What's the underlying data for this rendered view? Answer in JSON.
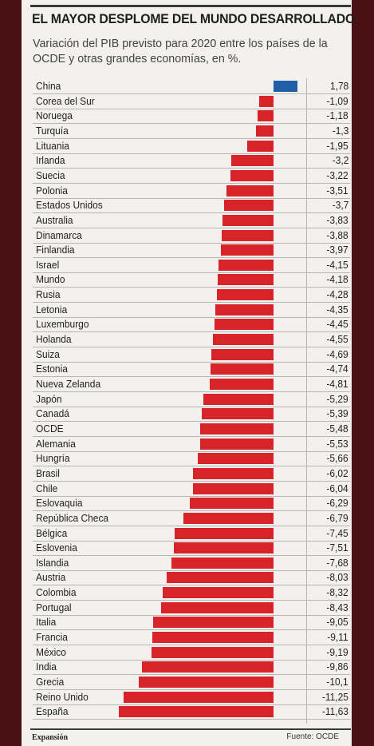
{
  "header": {
    "title": "EL MAYOR DESPLOME DEL MUNDO DESARROLLADO",
    "subtitle": "Variación del PIB previsto para 2020 entre los países de la OCDE y otras grandes economías, en %."
  },
  "footer": {
    "brand": "Expansión",
    "source": "Fuente: OCDE"
  },
  "colors": {
    "positive": "#1f5fa8",
    "negative": "#d8232a"
  },
  "chart_data": {
    "type": "bar",
    "orientation": "horizontal",
    "categories": [
      "China",
      "Corea del Sur",
      "Noruega",
      "Turquía",
      "Lituania",
      "Irlanda",
      "Suecia",
      "Polonia",
      "Estados Unidos",
      "Australia",
      "Dinamarca",
      "Finlandia",
      "Israel",
      "Mundo",
      "Rusia",
      "Letonia",
      "Luxemburgo",
      "Holanda",
      "Suiza",
      "Estonia",
      "Nueva Zelanda",
      "Japón",
      "Canadá",
      "OCDE",
      "Alemania",
      "Hungría",
      "Brasil",
      "Chile",
      "Eslovaquia",
      "República Checa",
      "Bélgica",
      "Eslovenia",
      "Islandia",
      "Austria",
      "Colombia",
      "Portugal",
      "Italia",
      "Francia",
      "México",
      "India",
      "Grecia",
      "Reino Unido",
      "España"
    ],
    "values": [
      1.78,
      -1.09,
      -1.18,
      -1.3,
      -1.95,
      -3.2,
      -3.22,
      -3.51,
      -3.7,
      -3.83,
      -3.88,
      -3.97,
      -4.15,
      -4.18,
      -4.28,
      -4.35,
      -4.45,
      -4.55,
      -4.69,
      -4.74,
      -4.81,
      -5.29,
      -5.39,
      -5.48,
      -5.53,
      -5.66,
      -6.02,
      -6.04,
      -6.29,
      -6.79,
      -7.45,
      -7.51,
      -7.68,
      -8.03,
      -8.32,
      -8.43,
      -9.05,
      -9.11,
      -9.19,
      -9.86,
      -10.1,
      -11.25,
      -11.63
    ],
    "labels": [
      "1,78",
      "-1,09",
      "-1,18",
      "-1,3",
      "-1,95",
      "-3,2",
      "-3,22",
      "-3,51",
      "-3,7",
      "-3,83",
      "-3,88",
      "-3,97",
      "-4,15",
      "-4,18",
      "-4,28",
      "-4,35",
      "-4,45",
      "-4,55",
      "-4,69",
      "-4,74",
      "-4,81",
      "-5,29",
      "-5,39",
      "-5,48",
      "-5,53",
      "-5,66",
      "-6,02",
      "-6,04",
      "-6,29",
      "-6,79",
      "-7,45",
      "-7,51",
      "-7,68",
      "-8,03",
      "-8,32",
      "-8,43",
      "-9,05",
      "-9,11",
      "-9,19",
      "-9,86",
      "-10,1",
      "-11,25",
      "-11,63"
    ]
  }
}
